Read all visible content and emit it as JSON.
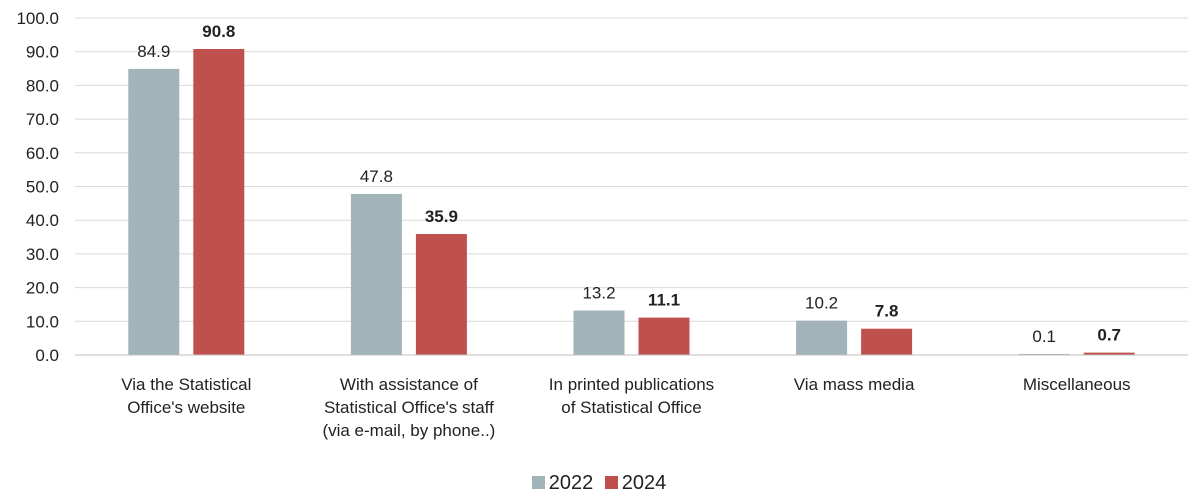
{
  "chart_data": {
    "type": "bar",
    "categories": [
      [
        "Via the Statistical",
        "Office's website"
      ],
      [
        "With assistance of",
        "Statistical Office's staff",
        "(via e-mail, by phone..)"
      ],
      [
        "In printed publications",
        "of Statistical Office"
      ],
      [
        "Via mass media"
      ],
      [
        "Miscellaneous"
      ]
    ],
    "series": [
      {
        "name": "2022",
        "color": "#a2b3b9",
        "label_bold": false,
        "values": [
          84.9,
          47.8,
          13.2,
          10.2,
          0.1
        ],
        "labels": [
          "84.9",
          "47.8",
          "13.2",
          "10.2",
          "0.1"
        ]
      },
      {
        "name": "2024",
        "color": "#c0504d",
        "label_bold": true,
        "values": [
          90.8,
          35.9,
          11.1,
          7.8,
          0.7
        ],
        "labels": [
          "90.8",
          "35.9",
          "11.1",
          "7.8",
          "0.7"
        ]
      }
    ],
    "ylim": [
      0,
      100
    ],
    "yticks": [
      "0.0",
      "10.0",
      "20.0",
      "30.0",
      "40.0",
      "50.0",
      "60.0",
      "70.0",
      "80.0",
      "90.0",
      "100.0"
    ],
    "grid": true,
    "legend_position": "bottom-center",
    "title": "",
    "xlabel": "",
    "ylabel": ""
  }
}
